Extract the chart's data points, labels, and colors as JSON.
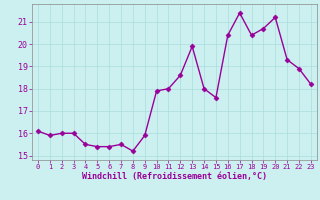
{
  "x": [
    0,
    1,
    2,
    3,
    4,
    5,
    6,
    7,
    8,
    9,
    10,
    11,
    12,
    13,
    14,
    15,
    16,
    17,
    18,
    19,
    20,
    21,
    22,
    23
  ],
  "y": [
    16.1,
    15.9,
    16.0,
    16.0,
    15.5,
    15.4,
    15.4,
    15.5,
    15.2,
    15.9,
    17.9,
    18.0,
    18.6,
    19.9,
    18.0,
    17.6,
    20.4,
    21.4,
    20.4,
    20.7,
    21.2,
    19.3,
    18.9,
    18.2
  ],
  "line_color": "#990099",
  "marker": "D",
  "marker_size": 2.5,
  "bg_color": "#ccf0f0",
  "grid_color": "#aadddd",
  "xlabel": "Windchill (Refroidissement éolien,°C)",
  "xlabel_color": "#990099",
  "tick_color": "#990099",
  "ylim": [
    14.8,
    21.8
  ],
  "xlim": [
    -0.5,
    23.5
  ],
  "yticks": [
    15,
    16,
    17,
    18,
    19,
    20,
    21
  ],
  "xticks": [
    0,
    1,
    2,
    3,
    4,
    5,
    6,
    7,
    8,
    9,
    10,
    11,
    12,
    13,
    14,
    15,
    16,
    17,
    18,
    19,
    20,
    21,
    22,
    23
  ],
  "spine_color": "#888888"
}
